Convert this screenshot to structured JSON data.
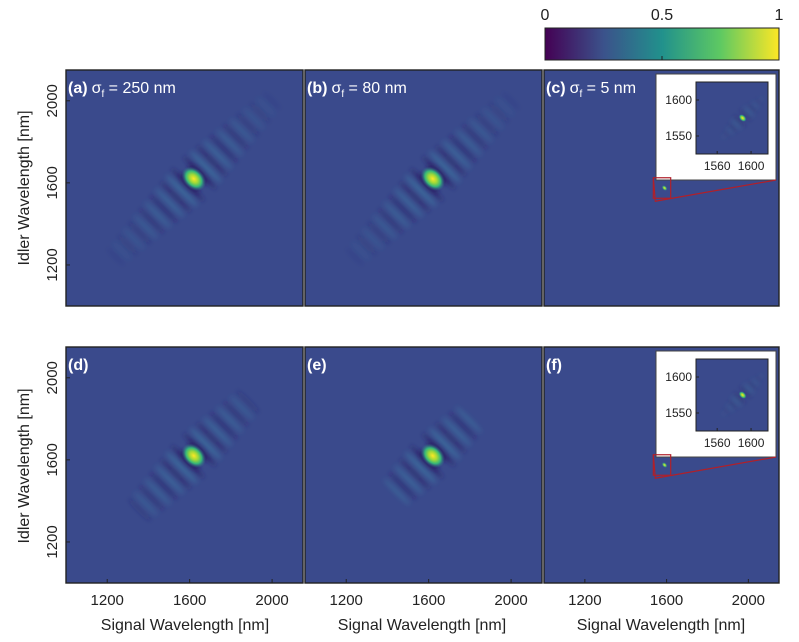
{
  "colorbar": {
    "ticks": [
      {
        "value": 0,
        "label": "0"
      },
      {
        "value": 0.5,
        "label": "0.5"
      },
      {
        "value": 1,
        "label": "1"
      }
    ],
    "colormap": [
      "#440154",
      "#3b528b",
      "#21918c",
      "#5ec962",
      "#fde725"
    ]
  },
  "axes": {
    "xlabel": "Signal Wavelength [nm]",
    "ylabel": "Idler Wavelength [nm]",
    "xlim": [
      1000,
      2150
    ],
    "ylim": [
      1000,
      2150
    ],
    "xticks": [
      {
        "value": 1200,
        "label": "1200"
      },
      {
        "value": 1600,
        "label": "1600"
      },
      {
        "value": 2000,
        "label": "2000"
      }
    ],
    "yticks": [
      {
        "value": 1200,
        "label": "1200"
      },
      {
        "value": 1600,
        "label": "1600"
      },
      {
        "value": 2000,
        "label": "2000"
      }
    ]
  },
  "chart_data": [
    {
      "type": "heatmap",
      "panel": "(a)",
      "sigma_prefix": "σ",
      "sigma_sub": "f",
      "sigma_text": " = 250 nm",
      "peak": {
        "x": 1620,
        "y": 1620
      },
      "fringes": "strong",
      "inset": null
    },
    {
      "type": "heatmap",
      "panel": "(b)",
      "sigma_prefix": "σ",
      "sigma_sub": "f",
      "sigma_text": " = 80 nm",
      "peak": {
        "x": 1620,
        "y": 1620
      },
      "fringes": "strong",
      "inset": null
    },
    {
      "type": "heatmap",
      "panel": "(c)",
      "sigma_prefix": "σ",
      "sigma_sub": "f",
      "sigma_text": " = 5 nm",
      "peak": {
        "x": 1590,
        "y": 1575
      },
      "fringes": "none",
      "inset": {
        "xlim": [
          1535,
          1620
        ],
        "ylim": [
          1525,
          1625
        ],
        "xticks": [
          {
            "value": 1560,
            "label": "1560"
          },
          {
            "value": 1600,
            "label": "1600"
          }
        ],
        "yticks": [
          {
            "value": 1550,
            "label": "1550"
          },
          {
            "value": 1600,
            "label": "1600"
          }
        ]
      }
    },
    {
      "type": "heatmap",
      "panel": "(d)",
      "sigma_prefix": "",
      "sigma_sub": "",
      "sigma_text": "",
      "peak": {
        "x": 1620,
        "y": 1620
      },
      "fringes": "medium",
      "inset": null
    },
    {
      "type": "heatmap",
      "panel": "(e)",
      "sigma_prefix": "",
      "sigma_sub": "",
      "sigma_text": "",
      "peak": {
        "x": 1620,
        "y": 1620
      },
      "fringes": "weak",
      "inset": null
    },
    {
      "type": "heatmap",
      "panel": "(f)",
      "sigma_prefix": "",
      "sigma_sub": "",
      "sigma_text": "",
      "peak": {
        "x": 1590,
        "y": 1575
      },
      "fringes": "none",
      "inset": {
        "xlim": [
          1535,
          1620
        ],
        "ylim": [
          1525,
          1625
        ],
        "xticks": [
          {
            "value": 1560,
            "label": "1560"
          },
          {
            "value": 1600,
            "label": "1600"
          }
        ],
        "yticks": [
          {
            "value": 1550,
            "label": "1550"
          },
          {
            "value": 1600,
            "label": "1600"
          }
        ]
      }
    }
  ]
}
